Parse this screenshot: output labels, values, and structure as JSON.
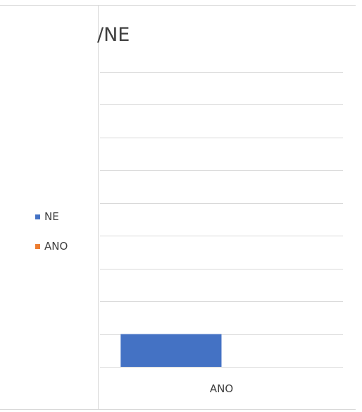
{
  "chart_data": {
    "type": "bar",
    "title": "/NE",
    "categories": [
      "ANO"
    ],
    "series": [
      {
        "name": "NE",
        "values": [
          1
        ],
        "color": "#4472c4"
      },
      {
        "name": "ANO",
        "values": [
          0
        ],
        "color": "#ed7d31"
      }
    ],
    "ylim": [
      0,
      9
    ],
    "grid": true,
    "legend_position": "left"
  }
}
